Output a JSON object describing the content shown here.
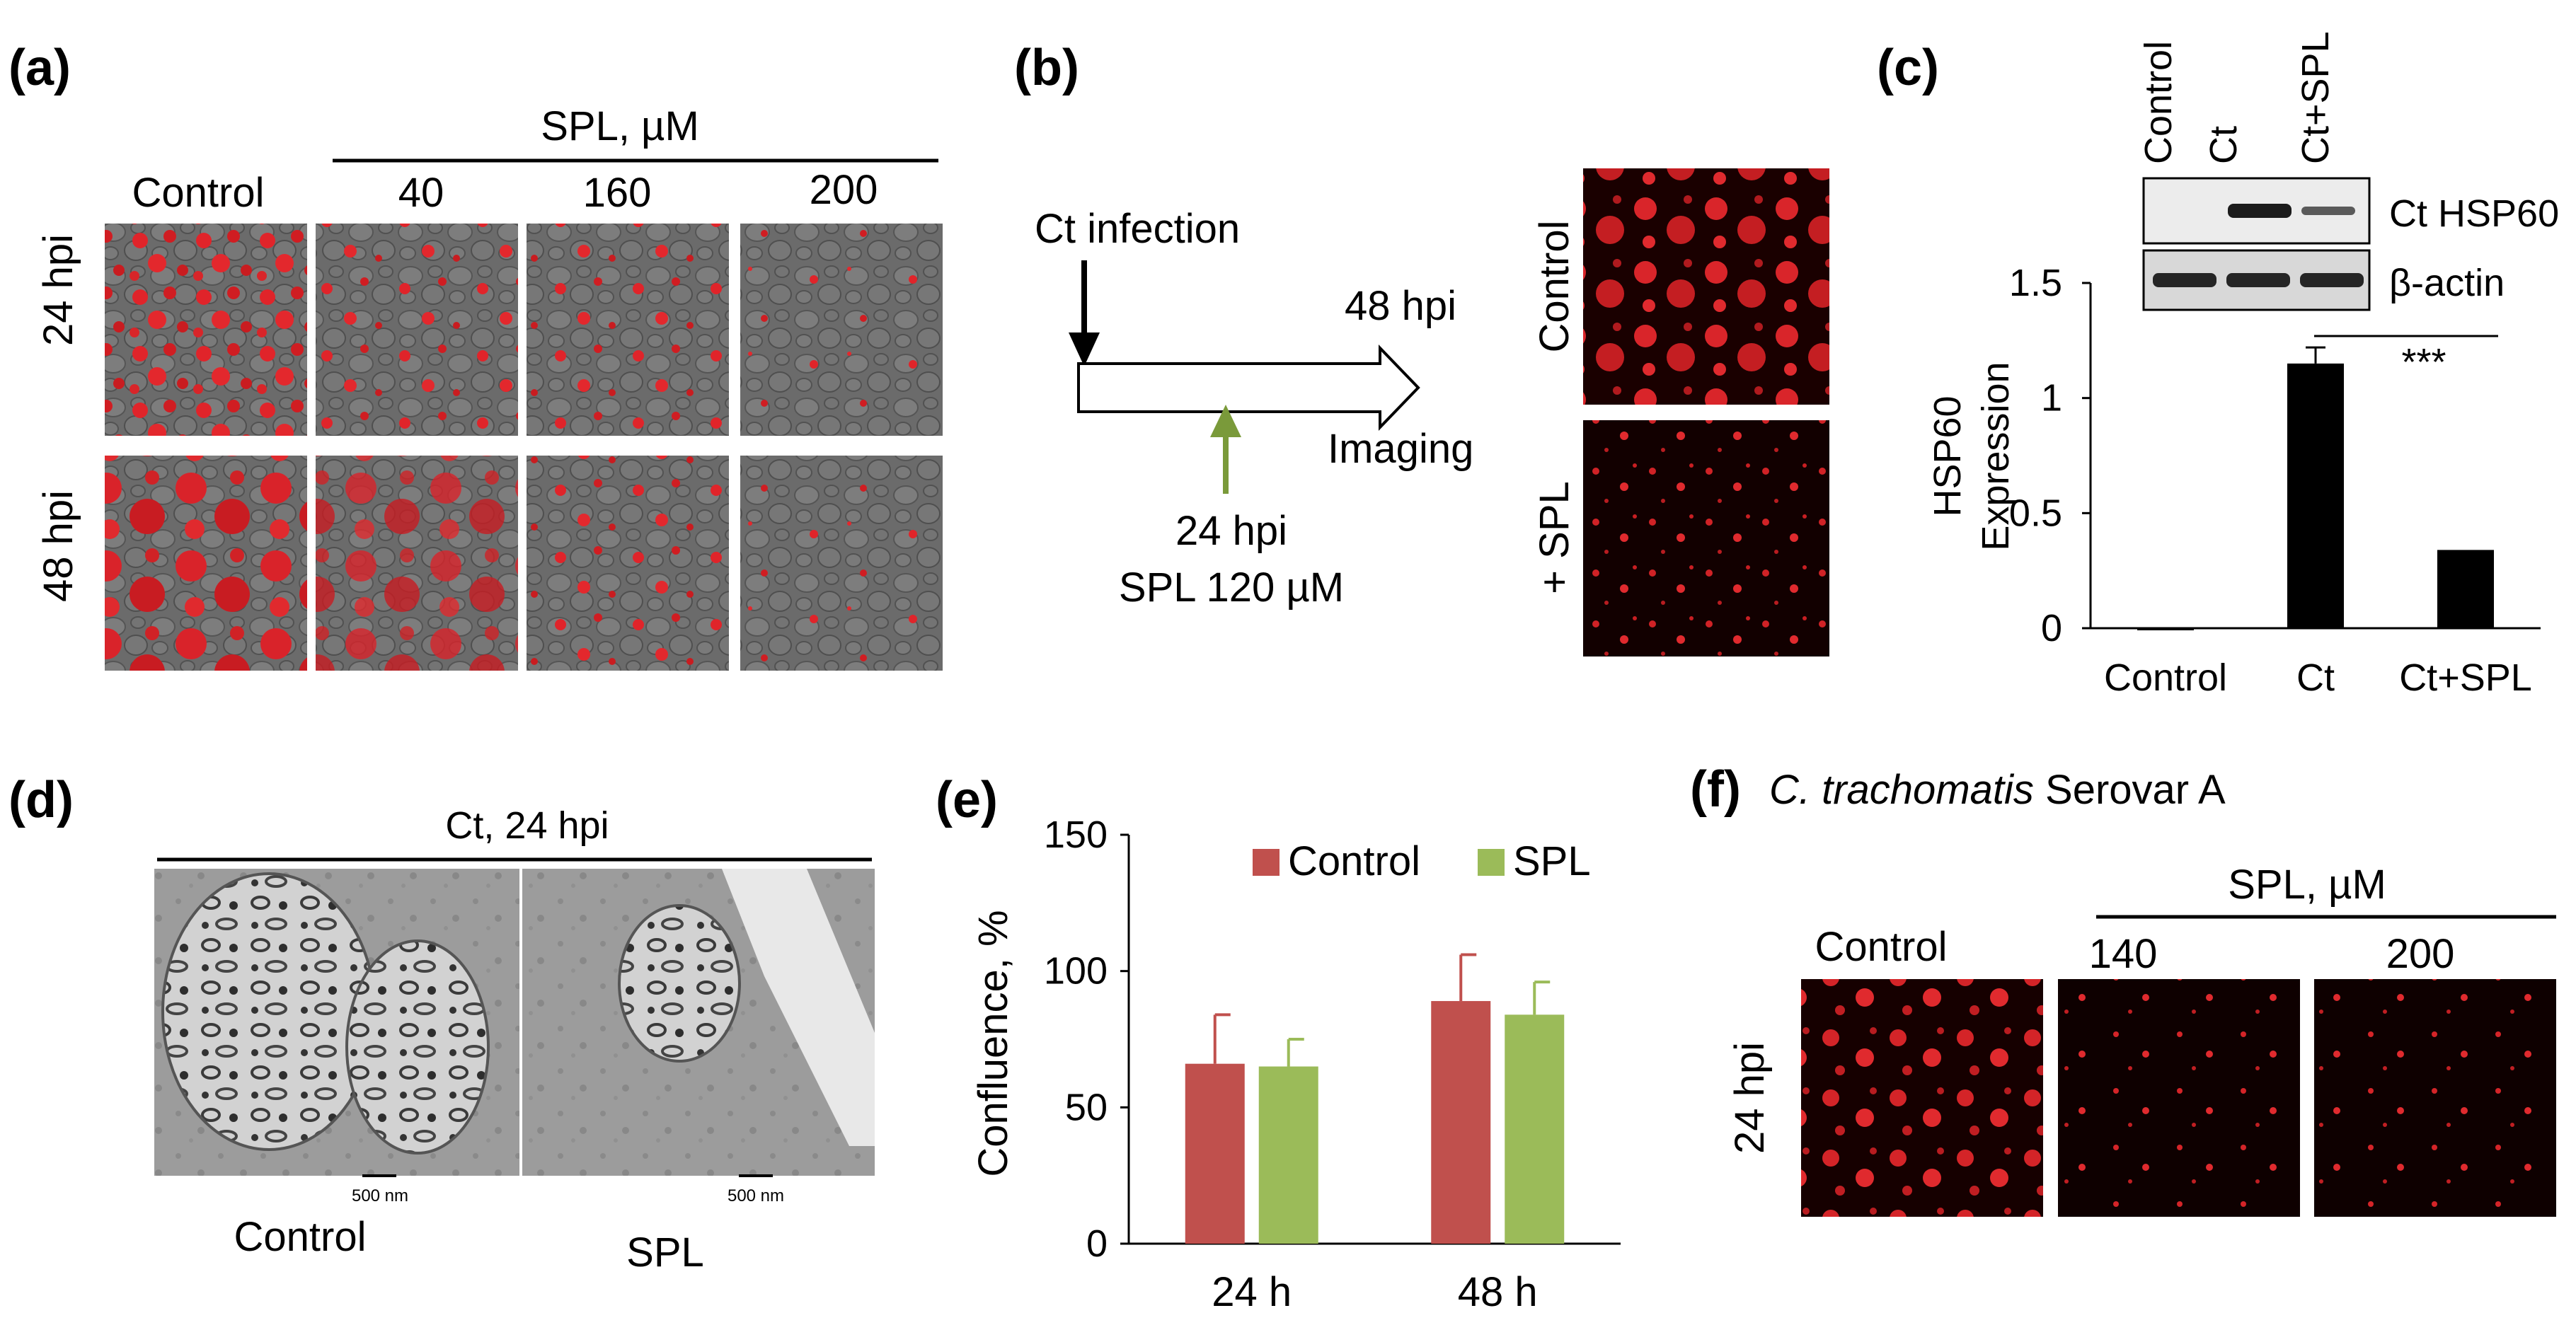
{
  "panel_a": {
    "label": "(a)",
    "group_header": "SPL, µM",
    "columns": [
      "Control",
      "40",
      "160",
      "200"
    ],
    "rows": [
      "24 hpi",
      "48 hpi"
    ]
  },
  "panel_b": {
    "label": "(b)",
    "infection_label": "Ct infection",
    "endpoint_label": "48 hpi",
    "imaging_label": "Imaging",
    "treatment_time": "24 hpi",
    "treatment_dose": "SPL 120 µM",
    "image_labels": [
      "Control",
      "+ SPL"
    ],
    "arrow_color": "#7a9a3a"
  },
  "panel_c": {
    "label": "(c)",
    "blot_lanes": [
      "Control",
      "Ct",
      "Ct+SPL"
    ],
    "blot_rows": [
      "Ct HSP60",
      "β-actin"
    ],
    "significance": "***",
    "chart_data": {
      "type": "bar",
      "categories": [
        "Control",
        "Ct",
        "Ct+SPL"
      ],
      "values": [
        0.0,
        1.15,
        0.34
      ],
      "errors": [
        0.0,
        0.07,
        0.0
      ],
      "ylabel_line1": "HSP60",
      "ylabel_line2": "Expression",
      "ylim": [
        0,
        1.5
      ],
      "yticks": [
        "0",
        "0.5",
        "1",
        "1.5"
      ],
      "bar_color": "#000000"
    }
  },
  "panel_d": {
    "label": "(d)",
    "header": "Ct, 24 hpi",
    "scale_bar": "500 nm",
    "image_labels": [
      "Control",
      "SPL"
    ]
  },
  "panel_e": {
    "label": "(e)",
    "chart_data": {
      "type": "bar",
      "categories": [
        "24 h",
        "48 h"
      ],
      "series": [
        {
          "name": "Control",
          "values": [
            66,
            89
          ],
          "errors": [
            18,
            17
          ],
          "color": "#c0504d"
        },
        {
          "name": "SPL",
          "values": [
            65,
            84
          ],
          "errors": [
            10,
            12
          ],
          "color": "#9bbb59"
        }
      ],
      "ylabel": "Confluence, %",
      "ylim": [
        0,
        150
      ],
      "yticks": [
        "0",
        "50",
        "100",
        "150"
      ],
      "legend": "top"
    }
  },
  "panel_f": {
    "label": "(f)",
    "title_italic": "C. trachomatis",
    "title_rest": " Serovar A",
    "group_header": "SPL, µM",
    "columns": [
      "Control",
      "140",
      "200"
    ],
    "row": "24 hpi"
  }
}
